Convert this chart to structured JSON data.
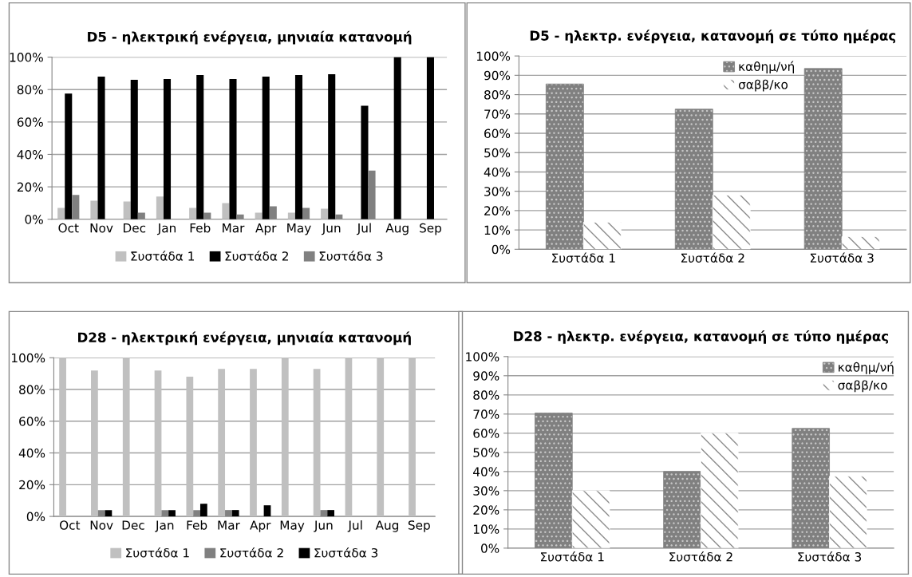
{
  "chart_data": [
    {
      "type": "bar",
      "title": "D5 - ηλεκτρική ενέργεια, μηνιαία κατανομή",
      "categories": [
        "Oct",
        "Nov",
        "Dec",
        "Jan",
        "Feb",
        "Mar",
        "Apr",
        "May",
        "Jun",
        "Jul",
        "Aug",
        "Sep"
      ],
      "series": [
        {
          "name": "Συστάδα 1",
          "color": "#c0c0c0",
          "values": [
            7,
            11.5,
            11,
            14,
            7,
            10,
            4,
            4,
            6.5,
            0,
            0,
            0
          ]
        },
        {
          "name": "Συστάδα 2",
          "color": "#000000",
          "values": [
            77.5,
            88,
            86,
            86.5,
            89,
            86.5,
            88,
            89,
            89.5,
            70,
            100,
            100
          ]
        },
        {
          "name": "Συστάδα 3",
          "color": "#808080",
          "values": [
            15,
            0,
            4,
            0,
            4,
            3,
            8,
            7,
            3,
            30,
            0,
            0
          ]
        }
      ],
      "ylim": [
        0,
        100
      ],
      "yticks": [
        {
          "value": 0,
          "label": "0%"
        },
        {
          "value": 20,
          "label": "20%"
        },
        {
          "value": 40,
          "label": "40%"
        },
        {
          "value": 60,
          "label": "60%"
        },
        {
          "value": 80,
          "label": "80%"
        },
        {
          "value": 100,
          "label": "100%"
        }
      ],
      "grid": "y",
      "legend": "bottom"
    },
    {
      "type": "bar",
      "title": "D5 - ηλεκτρ. ενέργεια, κατανομή σε τύπο ημέρας",
      "categories": [
        "Συστάδα 1",
        "Συστάδα 2",
        "Συστάδα 3"
      ],
      "series": [
        {
          "name": "καθημ/νή",
          "color": "#808080",
          "values": [
            85.5,
            72.5,
            93.5
          ]
        },
        {
          "name": "σαββ/κο",
          "color": "#ffffff",
          "values": [
            14,
            28,
            6.5
          ]
        }
      ],
      "ylim": [
        0,
        100
      ],
      "yticks": [
        {
          "value": 0,
          "label": "0%"
        },
        {
          "value": 10,
          "label": "10%"
        },
        {
          "value": 20,
          "label": "20%"
        },
        {
          "value": 30,
          "label": "30%"
        },
        {
          "value": 40,
          "label": "40%"
        },
        {
          "value": 50,
          "label": "50%"
        },
        {
          "value": 60,
          "label": "60%"
        },
        {
          "value": 70,
          "label": "70%"
        },
        {
          "value": 80,
          "label": "80%"
        },
        {
          "value": 90,
          "label": "90%"
        },
        {
          "value": 100,
          "label": "100%"
        }
      ],
      "grid": "y",
      "legend": "top"
    },
    {
      "type": "bar",
      "title": "D28 - ηλεκτρική ενέργεια, μηνιαία κατανομή",
      "categories": [
        "Oct",
        "Nov",
        "Dec",
        "Jan",
        "Feb",
        "Mar",
        "Apr",
        "May",
        "Jun",
        "Jul",
        "Aug",
        "Sep"
      ],
      "series": [
        {
          "name": "Συστάδα 1",
          "color": "#c0c0c0",
          "values": [
            100,
            92,
            100,
            92,
            88,
            93,
            93,
            100,
            93,
            100,
            100,
            100
          ]
        },
        {
          "name": "Συστάδα 2",
          "color": "#808080",
          "values": [
            0,
            4,
            0,
            4,
            4,
            4,
            0,
            0,
            4,
            0,
            0,
            0
          ]
        },
        {
          "name": "Συστάδα 3",
          "color": "#000000",
          "values": [
            0,
            4,
            0,
            4,
            8,
            4,
            7,
            0,
            4,
            0,
            0,
            0
          ]
        }
      ],
      "ylim": [
        0,
        100
      ],
      "yticks": [
        {
          "value": 0,
          "label": "0%"
        },
        {
          "value": 20,
          "label": "20%"
        },
        {
          "value": 40,
          "label": "40%"
        },
        {
          "value": 60,
          "label": "60%"
        },
        {
          "value": 80,
          "label": "80%"
        },
        {
          "value": 100,
          "label": "100%"
        }
      ],
      "grid": "y",
      "legend": "bottom"
    },
    {
      "type": "bar",
      "title": "D28 - ηλεκτρ. ενέργεια, κατανομή σε τύπο ημέρας",
      "categories": [
        "Συστάδα 1",
        "Συστάδα 2",
        "Συστάδα 3"
      ],
      "series": [
        {
          "name": "καθημ/νή",
          "color": "#808080",
          "values": [
            70.5,
            40,
            62.5
          ]
        },
        {
          "name": "σαββ/κο",
          "color": "#ffffff",
          "values": [
            30,
            60,
            37.5
          ]
        }
      ],
      "ylim": [
        0,
        100
      ],
      "yticks": [
        {
          "value": 0,
          "label": "0%"
        },
        {
          "value": 10,
          "label": "10%"
        },
        {
          "value": 20,
          "label": "20%"
        },
        {
          "value": 30,
          "label": "30%"
        },
        {
          "value": 40,
          "label": "40%"
        },
        {
          "value": 50,
          "label": "50%"
        },
        {
          "value": 60,
          "label": "60%"
        },
        {
          "value": 70,
          "label": "70%"
        },
        {
          "value": 80,
          "label": "80%"
        },
        {
          "value": 90,
          "label": "90%"
        },
        {
          "value": 100,
          "label": "100%"
        }
      ],
      "grid": "y",
      "legend": "top right"
    }
  ]
}
